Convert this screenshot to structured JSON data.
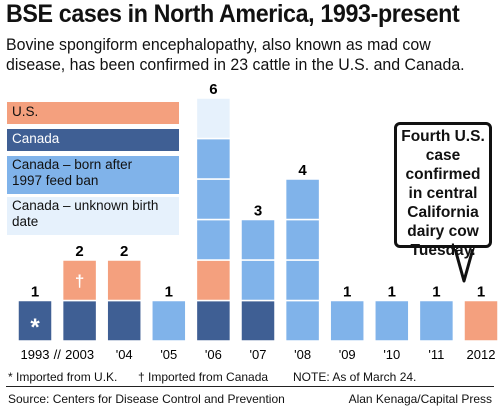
{
  "header": {
    "title": "BSE cases in North America, 1993-present",
    "subtitle": "Bovine spongiform encephalopathy, also known as mad cow disease, has been confirmed in 23 cattle in the U.S. and Canada."
  },
  "legend": [
    {
      "label": "U.S.",
      "color": "#F4A07E"
    },
    {
      "label": "Canada",
      "color": "#3F5F94"
    },
    {
      "label": "Canada – born after 1997 feed ban",
      "color": "#80B3EA"
    },
    {
      "label": "Canada – unknown birth date",
      "color": "#E6F1FC"
    }
  ],
  "callout": {
    "text": "Fourth U.S. case confirmed in central California dairy cow Tuesday."
  },
  "chart_data": {
    "type": "bar",
    "stacked": true,
    "categories": [
      "1993",
      "2003",
      "'04",
      "'05",
      "'06",
      "'07",
      "'08",
      "'09",
      "'10",
      "'11",
      "2012"
    ],
    "axis_break_after": "1993",
    "axis_break_symbol": "//",
    "series": [
      {
        "name": "Canada",
        "color": "#3F5F94",
        "values": [
          1,
          1,
          1,
          0,
          1,
          1,
          0,
          0,
          0,
          0,
          0
        ]
      },
      {
        "name": "U.S.",
        "color": "#F4A07E",
        "values": [
          0,
          1,
          1,
          0,
          1,
          0,
          0,
          0,
          0,
          0,
          1
        ]
      },
      {
        "name": "Canada – born after 1997 feed ban",
        "color": "#80B3EA",
        "values": [
          0,
          0,
          0,
          1,
          3,
          2,
          4,
          1,
          1,
          1,
          0
        ]
      },
      {
        "name": "Canada – unknown birth date",
        "color": "#E6F1FC",
        "values": [
          0,
          0,
          0,
          0,
          1,
          0,
          0,
          0,
          0,
          0,
          0
        ]
      }
    ],
    "totals": [
      1,
      2,
      2,
      1,
      6,
      3,
      4,
      1,
      1,
      1,
      1
    ],
    "markers": [
      {
        "category": "1993",
        "symbol": "*"
      },
      {
        "category": "2003",
        "symbol": "†"
      }
    ],
    "ylim": [
      0,
      6
    ],
    "grid": false
  },
  "footnotes": {
    "imported_uk": "* Imported from U.K.",
    "imported_canada": "† Imported from Canada",
    "note": "NOTE: As of March 24."
  },
  "credits": {
    "source": "Source: Centers for Disease Control and Prevention",
    "byline": "Alan Kenaga/Capital Press"
  }
}
